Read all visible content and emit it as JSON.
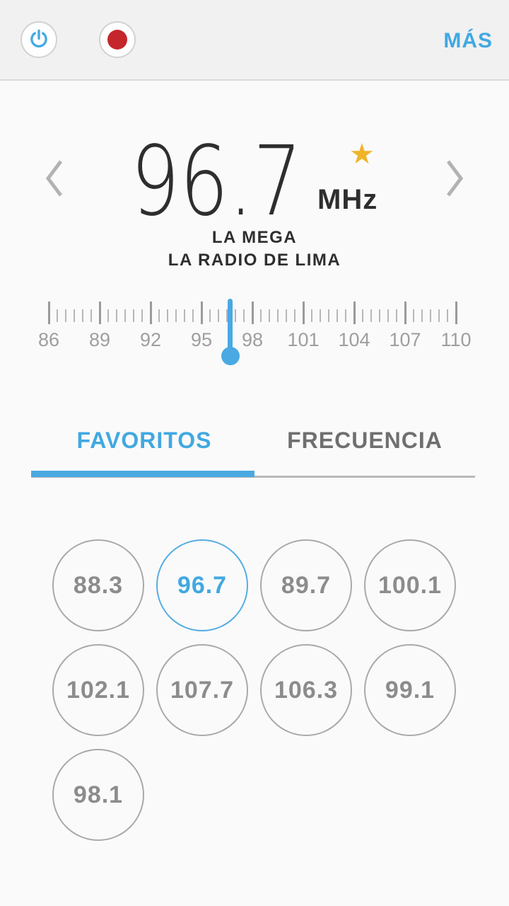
{
  "colors": {
    "accent": "#41a8e1",
    "needle_blue": "#4aa9e2",
    "favorite_star": "#f0b429",
    "record_red": "#c5262b"
  },
  "header": {
    "more_label": "MÁS"
  },
  "tuner": {
    "frequency": "96.7",
    "unit": "MHz",
    "station_name": "LA MEGA",
    "station_slogan": "LA RADIO DE LIMA",
    "favorite_star_glyph": "★",
    "scale": {
      "min": 86,
      "max": 110,
      "major_step": 3,
      "minor_step": 0.5,
      "labels": [
        "86",
        "89",
        "92",
        "95",
        "98",
        "101",
        "104",
        "107",
        "110"
      ],
      "needle_frequency": 96.7
    }
  },
  "tabs": [
    {
      "id": "favoritos",
      "label": "FAVORITOS",
      "active": true
    },
    {
      "id": "frecuencia",
      "label": "FRECUENCIA",
      "active": false
    }
  ],
  "presets": {
    "items": [
      {
        "value": "88.3",
        "active": false
      },
      {
        "value": "96.7",
        "active": true
      },
      {
        "value": "89.7",
        "active": false
      },
      {
        "value": "100.1",
        "active": false
      },
      {
        "value": "102.1",
        "active": false
      },
      {
        "value": "107.7",
        "active": false
      },
      {
        "value": "106.3",
        "active": false
      },
      {
        "value": "99.1",
        "active": false
      },
      {
        "value": "98.1",
        "active": false
      }
    ]
  }
}
